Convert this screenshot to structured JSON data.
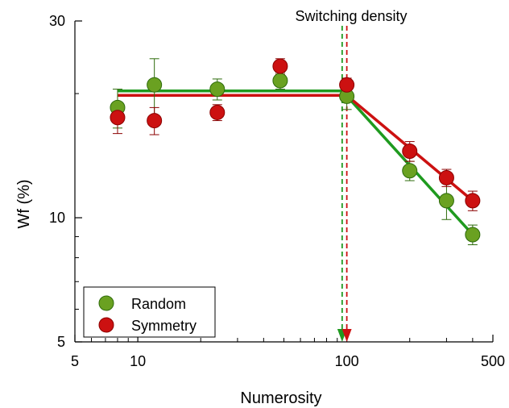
{
  "chart_data": {
    "type": "scatter",
    "xscale": "log",
    "yscale": "log",
    "xlim": [
      5,
      500
    ],
    "ylim": [
      5,
      30
    ],
    "xticks_major": [
      5,
      10,
      100,
      500
    ],
    "xtick_labels": [
      "5",
      "10",
      "100",
      "500"
    ],
    "yticks_major": [
      5,
      10,
      30
    ],
    "ytick_labels": [
      "5",
      "10",
      "30"
    ],
    "xlabel": "Numerosity",
    "ylabel": "Wf (%)",
    "annotation": "Switching density",
    "switching_density": {
      "random": 95,
      "symmetry": 100
    },
    "legend_position": "bottom-left",
    "grid": false,
    "series": [
      {
        "name": "Random",
        "color": "#6aa121",
        "edge_color": "#2d6b0b",
        "fit_color": "#1f9a1f",
        "points": [
          {
            "x": 8,
            "y": 18.5,
            "err": 2.0
          },
          {
            "x": 12,
            "y": 21.0,
            "err": 3.3
          },
          {
            "x": 24,
            "y": 20.5,
            "err": 1.2
          },
          {
            "x": 48,
            "y": 21.5,
            "err": 1.0
          },
          {
            "x": 100,
            "y": 19.7,
            "err": 1.4
          },
          {
            "x": 200,
            "y": 13.0,
            "err": 0.7
          },
          {
            "x": 300,
            "y": 11.0,
            "err": 1.1
          },
          {
            "x": 400,
            "y": 9.1,
            "err": 0.5
          }
        ],
        "fit": [
          {
            "x": 8,
            "y": 20.3
          },
          {
            "x": 95,
            "y": 20.3
          },
          {
            "x": 400,
            "y": 9.1
          }
        ]
      },
      {
        "name": "Symmetry",
        "color": "#cc1111",
        "edge_color": "#8b0000",
        "fit_color": "#cc1111",
        "points": [
          {
            "x": 8,
            "y": 17.5,
            "err": 1.5
          },
          {
            "x": 12,
            "y": 17.2,
            "err": 1.3
          },
          {
            "x": 24,
            "y": 18.0,
            "err": 0.8
          },
          {
            "x": 48,
            "y": 23.3,
            "err": 1.0
          },
          {
            "x": 100,
            "y": 21.0,
            "err": 0.8
          },
          {
            "x": 200,
            "y": 14.5,
            "err": 0.8
          },
          {
            "x": 300,
            "y": 12.5,
            "err": 0.6
          },
          {
            "x": 400,
            "y": 11.0,
            "err": 0.6
          }
        ],
        "fit": [
          {
            "x": 8,
            "y": 19.8
          },
          {
            "x": 100,
            "y": 19.8
          },
          {
            "x": 400,
            "y": 11.0
          }
        ]
      }
    ]
  }
}
